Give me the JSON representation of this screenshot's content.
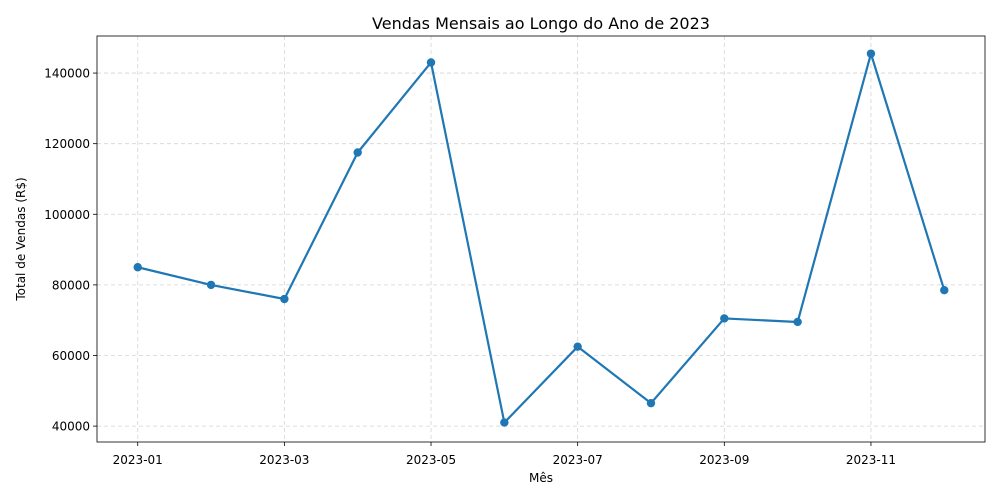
{
  "chart_data": {
    "type": "line",
    "title": "Vendas Mensais ao Longo do Ano de 2023",
    "xlabel": "Mês",
    "ylabel": "Total de Vendas (R$)",
    "x": [
      "2023-01",
      "2023-02",
      "2023-03",
      "2023-04",
      "2023-05",
      "2023-06",
      "2023-07",
      "2023-08",
      "2023-09",
      "2023-10",
      "2023-11",
      "2023-12"
    ],
    "xticks": [
      "2023-01",
      "2023-03",
      "2023-05",
      "2023-07",
      "2023-09",
      "2023-11"
    ],
    "yticks": [
      40000,
      60000,
      80000,
      100000,
      120000,
      140000
    ],
    "ylim": [
      35500,
      150500
    ],
    "grid": true,
    "legend": "none",
    "series": [
      {
        "values": [
          85000,
          80000,
          76000,
          117500,
          143000,
          41000,
          62500,
          46500,
          70500,
          69500,
          145500,
          78500
        ],
        "color": "#1f77b4",
        "marker": "circle"
      }
    ]
  }
}
